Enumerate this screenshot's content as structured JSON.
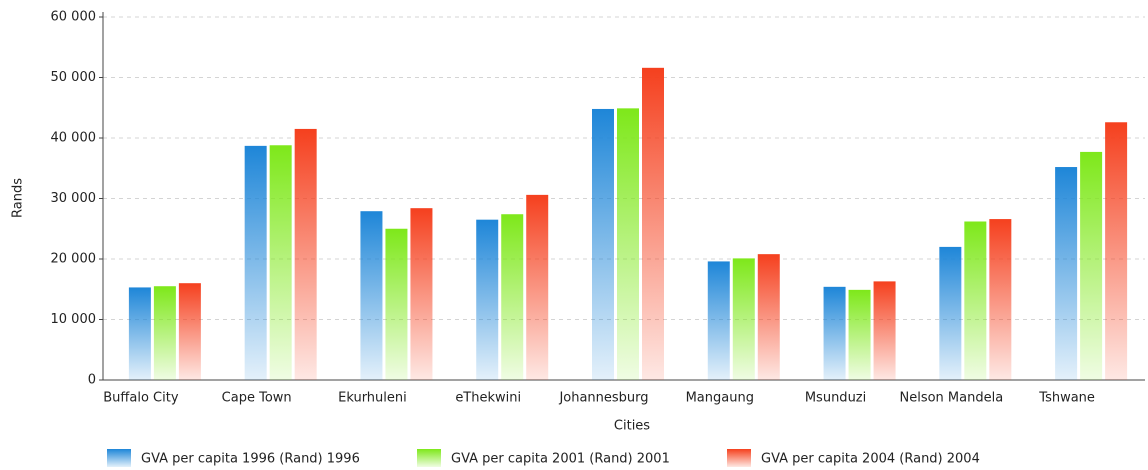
{
  "chart_data": {
    "type": "bar",
    "x_label": "Cities",
    "y_label": "Rands",
    "categories": [
      "Buffalo City",
      "Cape Town",
      "Ekurhuleni",
      "eThekwini",
      "Johannesburg",
      "Mangaung",
      "Msunduzi",
      "Nelson Mandela",
      "Tshwane"
    ],
    "series": [
      {
        "name": "GVA per capita 1996 (Rand) 1996",
        "color": "#1e86d8",
        "values": [
          15300,
          38700,
          27900,
          26500,
          44800,
          19600,
          15400,
          22000,
          35200
        ]
      },
      {
        "name": "GVA per capita 2001 (Rand) 2001",
        "color": "#7ee81a",
        "values": [
          15500,
          38800,
          25000,
          27400,
          44900,
          20100,
          14900,
          26200,
          37700
        ]
      },
      {
        "name": "GVA per capita 2004 (Rand) 2004",
        "color": "#f5401e",
        "values": [
          16000,
          41500,
          28400,
          30600,
          51600,
          20800,
          16300,
          26600,
          42600
        ]
      }
    ],
    "ylim": [
      0,
      60000
    ],
    "yticks": [
      0,
      {
        "value": 10000,
        "label": "10 000"
      },
      {
        "value": 20000,
        "label": "20 000"
      },
      {
        "value": 30000,
        "label": "30 000"
      },
      {
        "value": 40000,
        "label": "40 000"
      },
      {
        "value": 50000,
        "label": "50 000"
      },
      {
        "value": 60000,
        "label": "60 000"
      }
    ],
    "grid": true
  }
}
